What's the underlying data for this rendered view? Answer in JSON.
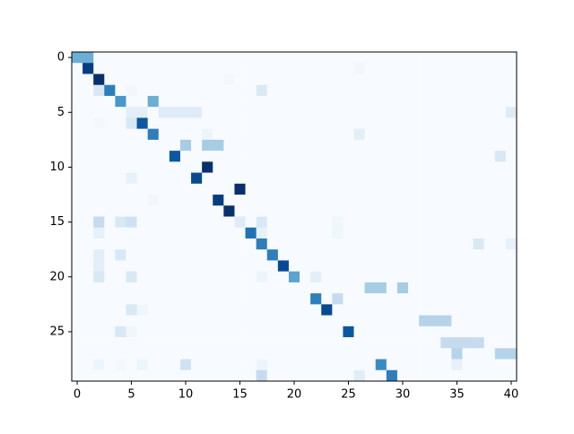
{
  "chart_data": {
    "type": "heatmap",
    "colormap": "Blues",
    "xlim": [
      -0.5,
      40.5
    ],
    "ylim": [
      29.5,
      -0.5
    ],
    "xticks": [
      0,
      5,
      10,
      15,
      20,
      25,
      30,
      35,
      40
    ],
    "yticks": [
      0,
      5,
      10,
      15,
      20,
      25
    ],
    "z": [
      [
        0.5,
        0.5,
        0,
        0,
        0,
        0,
        0,
        0,
        0,
        0,
        0,
        0,
        0,
        0,
        0,
        0,
        0,
        0,
        0,
        0,
        0,
        0,
        0,
        0,
        0,
        0,
        0,
        0,
        0,
        0,
        0,
        0,
        0,
        0,
        0,
        0,
        0,
        0,
        0,
        0,
        0
      ],
      [
        0,
        0.95,
        0,
        0,
        0,
        0,
        0,
        0,
        0,
        0,
        0,
        0,
        0,
        0,
        0,
        0,
        0,
        0,
        0,
        0,
        0,
        0,
        0,
        0,
        0,
        0,
        0.03,
        0,
        0,
        0,
        0,
        0,
        0,
        0,
        0,
        0,
        0,
        0,
        0,
        0,
        0
      ],
      [
        0,
        0,
        1,
        0,
        0,
        0,
        0,
        0,
        0,
        0,
        0,
        0,
        0,
        0,
        0.02,
        0,
        0,
        0,
        0,
        0,
        0,
        0,
        0,
        0,
        0,
        0,
        0,
        0,
        0,
        0,
        0,
        0,
        0,
        0,
        0,
        0,
        0,
        0,
        0,
        0,
        0
      ],
      [
        0,
        0,
        0.15,
        0.7,
        0,
        0.03,
        0,
        0,
        0,
        0,
        0,
        0,
        0,
        0,
        0,
        0,
        0,
        0.15,
        0,
        0,
        0,
        0,
        0,
        0,
        0,
        0,
        0,
        0,
        0,
        0,
        0,
        0,
        0,
        0,
        0,
        0,
        0,
        0,
        0,
        0,
        0
      ],
      [
        0,
        0,
        0,
        0,
        0.6,
        0,
        0,
        0.5,
        0,
        0,
        0,
        0,
        0,
        0,
        0,
        0,
        0,
        0,
        0,
        0,
        0,
        0,
        0,
        0,
        0,
        0,
        0,
        0,
        0,
        0,
        0,
        0,
        0,
        0,
        0,
        0,
        0,
        0,
        0,
        0,
        0
      ],
      [
        0,
        0,
        0,
        0,
        0,
        0.1,
        0.1,
        0,
        0.12,
        0.12,
        0.12,
        0.12,
        0,
        0,
        0,
        0,
        0,
        0,
        0,
        0,
        0,
        0,
        0,
        0,
        0,
        0,
        0,
        0,
        0,
        0,
        0,
        0,
        0,
        0,
        0,
        0,
        0,
        0,
        0,
        0,
        0.12
      ],
      [
        0,
        0,
        0.02,
        0,
        0,
        0.15,
        0.85,
        0,
        0,
        0,
        0,
        0,
        0,
        0,
        0,
        0,
        0,
        0,
        0,
        0,
        0,
        0,
        0,
        0,
        0,
        0,
        0,
        0,
        0,
        0,
        0,
        0,
        0,
        0,
        0,
        0,
        0,
        0,
        0,
        0,
        0
      ],
      [
        0,
        0,
        0,
        0,
        0,
        0,
        0,
        0.7,
        0,
        0,
        0,
        0,
        0.05,
        0,
        0,
        0,
        0,
        0,
        0,
        0,
        0,
        0,
        0,
        0,
        0,
        0,
        0.1,
        0,
        0,
        0,
        0,
        0,
        0,
        0,
        0,
        0,
        0,
        0,
        0,
        0,
        0
      ],
      [
        0,
        0,
        0,
        0,
        0,
        0,
        0,
        0,
        0,
        0,
        0.35,
        0,
        0.35,
        0.35,
        0,
        0,
        0,
        0,
        0,
        0,
        0,
        0,
        0,
        0,
        0,
        0,
        0,
        0,
        0,
        0,
        0,
        0,
        0,
        0,
        0,
        0,
        0,
        0,
        0,
        0,
        0
      ],
      [
        0,
        0,
        0,
        0,
        0,
        0,
        0,
        0,
        0,
        0.85,
        0,
        0,
        0,
        0,
        0,
        0,
        0,
        0,
        0,
        0,
        0,
        0,
        0,
        0,
        0,
        0,
        0,
        0,
        0,
        0,
        0,
        0,
        0,
        0,
        0,
        0,
        0,
        0,
        0,
        0.15,
        0
      ],
      [
        0,
        0,
        0,
        0,
        0,
        0,
        0,
        0,
        0,
        0,
        0,
        0,
        1,
        0,
        0,
        0,
        0,
        0,
        0,
        0,
        0,
        0,
        0,
        0,
        0,
        0,
        0,
        0,
        0,
        0,
        0,
        0,
        0,
        0,
        0,
        0,
        0,
        0,
        0,
        0,
        0
      ],
      [
        0,
        0,
        0,
        0,
        0,
        0.08,
        0,
        0,
        0,
        0,
        0,
        0.9,
        0,
        0,
        0,
        0,
        0,
        0,
        0,
        0,
        0,
        0,
        0,
        0,
        0,
        0,
        0,
        0,
        0,
        0,
        0,
        0,
        0,
        0,
        0,
        0,
        0,
        0,
        0,
        0,
        0
      ],
      [
        0,
        0,
        0,
        0,
        0,
        0,
        0,
        0,
        0,
        0,
        0,
        0,
        0,
        0,
        0,
        1,
        0,
        0,
        0,
        0,
        0,
        0,
        0,
        0,
        0,
        0,
        0,
        0,
        0,
        0,
        0,
        0,
        0,
        0,
        0,
        0,
        0,
        0,
        0,
        0,
        0
      ],
      [
        0,
        0,
        0,
        0,
        0,
        0,
        0,
        0.03,
        0,
        0,
        0,
        0,
        0,
        0.95,
        0,
        0,
        0,
        0,
        0,
        0,
        0,
        0,
        0,
        0,
        0,
        0,
        0,
        0,
        0,
        0,
        0,
        0,
        0,
        0,
        0,
        0,
        0,
        0,
        0,
        0,
        0
      ],
      [
        0,
        0,
        0,
        0,
        0,
        0,
        0,
        0,
        0,
        0,
        0,
        0,
        0,
        0,
        1,
        0,
        0,
        0,
        0,
        0,
        0,
        0,
        0,
        0,
        0,
        0,
        0,
        0,
        0,
        0,
        0,
        0,
        0,
        0,
        0,
        0,
        0,
        0,
        0,
        0,
        0
      ],
      [
        0,
        0,
        0.25,
        0,
        0.15,
        0.2,
        0,
        0,
        0,
        0,
        0,
        0,
        0,
        0,
        0,
        0.12,
        0,
        0.15,
        0,
        0,
        0,
        0,
        0,
        0,
        0.04,
        0,
        0,
        0,
        0,
        0,
        0,
        0,
        0,
        0,
        0,
        0,
        0,
        0,
        0,
        0,
        0
      ],
      [
        0,
        0,
        0.08,
        0,
        0,
        0,
        0,
        0,
        0,
        0,
        0,
        0,
        0,
        0,
        0,
        0,
        0.75,
        0.08,
        0,
        0,
        0,
        0,
        0,
        0,
        0.04,
        0,
        0,
        0,
        0,
        0,
        0,
        0,
        0,
        0,
        0,
        0,
        0,
        0,
        0,
        0,
        0
      ],
      [
        0,
        0,
        0,
        0,
        0,
        0,
        0,
        0,
        0,
        0,
        0,
        0,
        0,
        0,
        0,
        0,
        0,
        0.7,
        0,
        0,
        0,
        0,
        0,
        0,
        0,
        0,
        0,
        0,
        0,
        0,
        0,
        0,
        0,
        0,
        0,
        0,
        0,
        0.15,
        0,
        0,
        0.08
      ],
      [
        0,
        0,
        0.1,
        0,
        0.15,
        0,
        0,
        0,
        0,
        0,
        0,
        0,
        0,
        0,
        0,
        0,
        0,
        0,
        0.7,
        0,
        0,
        0,
        0,
        0,
        0,
        0,
        0,
        0,
        0,
        0,
        0,
        0,
        0,
        0,
        0,
        0,
        0,
        0,
        0,
        0,
        0
      ],
      [
        0,
        0,
        0.1,
        0,
        0,
        0,
        0,
        0,
        0,
        0,
        0,
        0,
        0,
        0,
        0,
        0,
        0,
        0,
        0,
        0.9,
        0,
        0,
        0,
        0,
        0,
        0,
        0,
        0,
        0,
        0,
        0,
        0,
        0,
        0,
        0,
        0,
        0,
        0,
        0,
        0,
        0
      ],
      [
        0,
        0,
        0.15,
        0,
        0,
        0.15,
        0,
        0,
        0,
        0,
        0,
        0,
        0,
        0,
        0,
        0,
        0,
        0.05,
        0,
        0,
        0.55,
        0,
        0.1,
        0,
        0,
        0,
        0,
        0,
        0,
        0,
        0,
        0,
        0,
        0,
        0,
        0,
        0,
        0,
        0,
        0,
        0
      ],
      [
        0,
        0,
        0,
        0,
        0,
        0,
        0,
        0,
        0,
        0,
        0,
        0,
        0,
        0,
        0,
        0,
        0,
        0,
        0,
        0,
        0,
        0,
        0,
        0,
        0,
        0,
        0,
        0.35,
        0.35,
        0,
        0.35,
        0,
        0,
        0,
        0,
        0,
        0,
        0,
        0,
        0,
        0
      ],
      [
        0,
        0,
        0,
        0,
        0,
        0,
        0,
        0,
        0,
        0,
        0,
        0,
        0,
        0,
        0,
        0,
        0,
        0,
        0,
        0,
        0,
        0,
        0.7,
        0,
        0.25,
        0,
        0,
        0,
        0,
        0,
        0,
        0,
        0,
        0,
        0,
        0,
        0,
        0,
        0,
        0,
        0
      ],
      [
        0,
        0,
        0,
        0,
        0,
        0.15,
        0.04,
        0,
        0,
        0,
        0,
        0,
        0,
        0,
        0,
        0,
        0,
        0,
        0,
        0,
        0,
        0,
        0,
        0.9,
        0,
        0,
        0,
        0,
        0,
        0,
        0,
        0,
        0,
        0,
        0,
        0,
        0,
        0,
        0,
        0,
        0
      ],
      [
        0,
        0,
        0,
        0,
        0,
        0,
        0,
        0,
        0,
        0,
        0,
        0,
        0,
        0,
        0,
        0,
        0,
        0,
        0,
        0,
        0,
        0,
        0,
        0,
        0,
        0,
        0,
        0,
        0,
        0,
        0,
        0,
        0.3,
        0.3,
        0.3,
        0,
        0,
        0,
        0,
        0,
        0
      ],
      [
        0,
        0,
        0,
        0,
        0.15,
        0.04,
        0,
        0,
        0,
        0,
        0,
        0,
        0,
        0,
        0,
        0,
        0,
        0,
        0,
        0,
        0,
        0,
        0,
        0,
        0,
        0.85,
        0,
        0,
        0,
        0,
        0,
        0,
        0,
        0,
        0,
        0,
        0,
        0,
        0,
        0,
        0
      ],
      [
        0,
        0,
        0,
        0,
        0,
        0,
        0,
        0,
        0,
        0,
        0,
        0,
        0,
        0,
        0,
        0,
        0,
        0,
        0,
        0,
        0,
        0,
        0,
        0,
        0,
        0,
        0,
        0,
        0,
        0,
        0,
        0,
        0,
        0,
        0.25,
        0.25,
        0.25,
        0.25,
        0,
        0,
        0
      ],
      [
        0,
        0,
        0,
        0,
        0,
        0,
        0,
        0,
        0,
        0,
        0,
        0,
        0,
        0,
        0,
        0,
        0,
        0,
        0,
        0,
        0,
        0,
        0,
        0,
        0,
        0,
        0,
        0,
        0,
        0,
        0,
        0,
        0,
        0,
        0,
        0.3,
        0,
        0,
        0,
        0.3,
        0.3
      ],
      [
        0,
        0,
        0.05,
        0,
        0.02,
        0,
        0.05,
        0,
        0,
        0,
        0.2,
        0,
        0,
        0,
        0,
        0,
        0,
        0.05,
        0,
        0,
        0,
        0,
        0,
        0,
        0,
        0,
        0,
        0,
        0.65,
        0,
        0,
        0,
        0,
        0,
        0,
        0.08,
        0,
        0,
        0,
        0,
        0
      ],
      [
        0,
        0,
        0,
        0,
        0,
        0,
        0,
        0,
        0,
        0,
        0,
        0,
        0,
        0,
        0,
        0,
        0,
        0.25,
        0,
        0,
        0,
        0,
        0,
        0,
        0,
        0,
        0.12,
        0,
        0,
        0.7,
        0,
        0,
        0,
        0,
        0,
        0,
        0,
        0,
        0,
        0,
        0
      ]
    ]
  }
}
